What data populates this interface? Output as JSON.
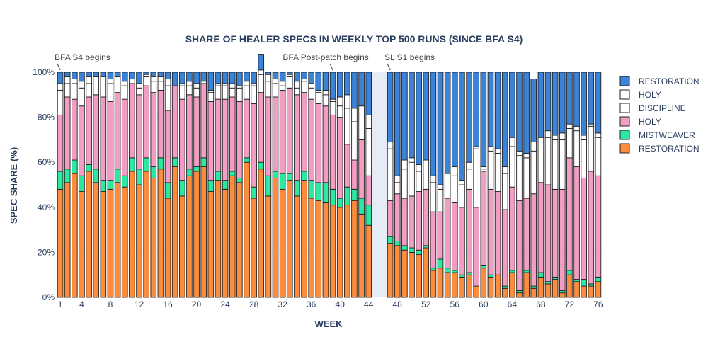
{
  "chart_data": {
    "type": "bar",
    "stacked": true,
    "title": "SHARE OF HEALER SPECS IN WEEKLY TOP 500 RUNS (SINCE BFA S4)",
    "xlabel": "WEEK",
    "ylabel": "SPEC SHARE (%)",
    "ylim": [
      0,
      100
    ],
    "xlim": [
      0.5,
      76.5
    ],
    "y_ticks": [
      0,
      20,
      40,
      60,
      80,
      100
    ],
    "y_tick_labels": [
      "0%",
      "20%",
      "40%",
      "60%",
      "80%",
      "100%"
    ],
    "x_ticks": [
      1,
      4,
      8,
      12,
      16,
      20,
      24,
      28,
      32,
      36,
      40,
      44,
      48,
      52,
      56,
      60,
      64,
      68,
      72,
      76
    ],
    "legend_position": "right",
    "gap_shading": {
      "from": 45,
      "to": 46,
      "color": "#e5ecf6"
    },
    "annotations": [
      {
        "text": "BFA S4 begins",
        "x": 1
      },
      {
        "text": "BFA Post-patch begins",
        "x": 39
      },
      {
        "text": "SL S1 begins",
        "x": 47
      }
    ],
    "weeks": [
      1,
      2,
      3,
      4,
      5,
      6,
      7,
      8,
      9,
      10,
      11,
      12,
      13,
      14,
      15,
      16,
      17,
      18,
      19,
      20,
      21,
      22,
      23,
      24,
      25,
      26,
      27,
      28,
      29,
      30,
      31,
      32,
      33,
      34,
      35,
      36,
      37,
      38,
      39,
      40,
      41,
      42,
      43,
      44,
      47,
      48,
      49,
      50,
      51,
      52,
      53,
      54,
      55,
      56,
      57,
      58,
      59,
      60,
      61,
      62,
      63,
      64,
      65,
      66,
      67,
      68,
      69,
      70,
      71,
      72,
      73,
      74,
      75,
      76
    ],
    "series": [
      {
        "name": "RESTORATION",
        "color": "#fd8d3c",
        "values": [
          48,
          51,
          55,
          47,
          56,
          51,
          47,
          48,
          51,
          49,
          56,
          50,
          56,
          53,
          57,
          44,
          58,
          45,
          54,
          56,
          58,
          47,
          52,
          48,
          54,
          51,
          60,
          44,
          57,
          45,
          53,
          48,
          52,
          45,
          52,
          44,
          43,
          42,
          41,
          40,
          41,
          43,
          37,
          32,
          24,
          23,
          21,
          20,
          19,
          22,
          12,
          13,
          11,
          11,
          9,
          10,
          5,
          13,
          9,
          10,
          4,
          11,
          2,
          11,
          4,
          9,
          6,
          8,
          2,
          10,
          7,
          5,
          5,
          7
        ]
      },
      {
        "name": "MISTWEAVER",
        "color": "#2ee8a2",
        "values": [
          8,
          6,
          6,
          7,
          3,
          6,
          5,
          4,
          6,
          5,
          6,
          7,
          6,
          5,
          5,
          7,
          4,
          7,
          3,
          2,
          4,
          5,
          4,
          4,
          2,
          2,
          2,
          5,
          3,
          9,
          3,
          7,
          3,
          7,
          4,
          8,
          8,
          9,
          7,
          4,
          8,
          5,
          7,
          9,
          3,
          2,
          2,
          2,
          2,
          1,
          1,
          4,
          2,
          1,
          1,
          1,
          0,
          1,
          1,
          0,
          1,
          1,
          1,
          1,
          1,
          2,
          1,
          1,
          1,
          2,
          1,
          3,
          1,
          2
        ]
      },
      {
        "name": "HOLY",
        "color": "#f29ec4",
        "values": [
          25,
          32,
          27,
          31,
          30,
          33,
          37,
          35,
          34,
          34,
          33,
          33,
          32,
          33,
          30,
          32,
          32,
          36,
          33,
          31,
          33,
          35,
          32,
          36,
          33,
          34,
          26,
          37,
          31,
          35,
          33,
          37,
          38,
          38,
          35,
          36,
          35,
          34,
          33,
          36,
          19,
          13,
          26,
          13,
          16,
          21,
          21,
          23,
          26,
          25,
          25,
          21,
          31,
          30,
          30,
          37,
          35,
          42,
          38,
          37,
          34,
          37,
          40,
          32,
          41,
          40,
          43,
          39,
          45,
          50,
          50,
          45,
          50,
          45
        ]
      },
      {
        "name": "DISCIPLINE",
        "color": "#ffffff",
        "values": [
          11,
          6,
          7,
          8,
          6,
          7,
          8,
          8,
          6,
          6,
          0,
          3,
          4,
          5,
          4,
          11,
          0,
          6,
          4,
          4,
          0,
          4,
          6,
          6,
          4,
          6,
          6,
          8,
          8,
          7,
          6,
          2,
          5,
          3,
          5,
          5,
          5,
          5,
          6,
          5,
          16,
          17,
          11,
          21,
          23,
          5,
          13,
          15,
          9,
          13,
          13,
          10,
          9,
          12,
          10,
          9,
          26,
          1,
          17,
          17,
          16,
          18,
          20,
          18,
          19,
          18,
          21,
          22,
          22,
          13,
          16,
          17,
          20,
          17
        ]
      },
      {
        "name": "HOLY",
        "color": "#ffffff",
        "values": [
          3,
          3,
          2,
          3,
          3,
          1,
          1,
          2,
          1,
          2,
          2,
          2,
          1,
          2,
          2,
          3,
          0,
          1,
          2,
          2,
          1,
          1,
          1,
          1,
          2,
          1,
          2,
          1,
          2,
          3,
          2,
          2,
          1,
          3,
          1,
          2,
          1,
          2,
          1,
          4,
          6,
          6,
          4,
          6,
          3,
          3,
          4,
          2,
          3,
          0,
          3,
          2,
          2,
          4,
          2,
          3,
          1,
          1,
          2,
          2,
          3,
          4,
          2,
          2,
          4,
          2,
          3,
          2,
          3,
          2,
          2,
          2,
          1,
          2
        ]
      },
      {
        "name": "RESTORATION",
        "color": "#3a83d8",
        "values": [
          5,
          2,
          3,
          4,
          2,
          2,
          2,
          3,
          2,
          4,
          3,
          5,
          1,
          2,
          2,
          3,
          6,
          5,
          4,
          5,
          4,
          8,
          5,
          5,
          5,
          6,
          4,
          5,
          7,
          1,
          3,
          4,
          1,
          4,
          3,
          5,
          8,
          8,
          12,
          11,
          10,
          16,
          15,
          19,
          31,
          46,
          39,
          38,
          41,
          39,
          46,
          50,
          45,
          42,
          48,
          40,
          33,
          42,
          33,
          34,
          42,
          29,
          35,
          36,
          28,
          29,
          26,
          28,
          27,
          23,
          24,
          28,
          23,
          27
        ]
      }
    ]
  }
}
